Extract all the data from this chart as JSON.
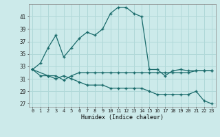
{
  "xlabel": "Humidex (Indice chaleur)",
  "background_color": "#cceaea",
  "grid_color": "#b0d8d8",
  "line_color": "#1a6b6b",
  "xlim": [
    -0.5,
    23.5
  ],
  "ylim": [
    26.5,
    43.0
  ],
  "yticks": [
    27,
    29,
    31,
    33,
    35,
    37,
    39,
    41
  ],
  "xticks": [
    0,
    1,
    2,
    3,
    4,
    5,
    6,
    7,
    8,
    9,
    10,
    11,
    12,
    13,
    14,
    15,
    16,
    17,
    18,
    19,
    20,
    21,
    22,
    23
  ],
  "series1_x": [
    0,
    1,
    2,
    3,
    4,
    5,
    6,
    7,
    8,
    9,
    10,
    11,
    12,
    13,
    14,
    15,
    16,
    17,
    18,
    19,
    20,
    21,
    22,
    23
  ],
  "series1_y": [
    32.5,
    31.5,
    31.5,
    31.5,
    30.8,
    31.5,
    32.0,
    32.0,
    32.0,
    32.0,
    32.0,
    32.0,
    32.0,
    32.0,
    32.0,
    32.0,
    32.0,
    32.0,
    32.0,
    32.0,
    32.0,
    32.3,
    32.3,
    32.3
  ],
  "series2_x": [
    0,
    1,
    2,
    3,
    4,
    5,
    6,
    7,
    8,
    9,
    10,
    11,
    12,
    13,
    14,
    15,
    16,
    17,
    18,
    19,
    20,
    21,
    22,
    23
  ],
  "series2_y": [
    32.5,
    33.5,
    36.0,
    38.0,
    34.5,
    36.0,
    37.5,
    38.5,
    38.0,
    39.0,
    41.5,
    42.5,
    42.5,
    41.5,
    41.0,
    32.5,
    32.5,
    31.5,
    32.3,
    32.5,
    32.3,
    32.3,
    32.3,
    32.3
  ],
  "series3_x": [
    0,
    2,
    3,
    4,
    5,
    6,
    7,
    8,
    9,
    10,
    11,
    12,
    13,
    14,
    15,
    16,
    17,
    18,
    19,
    20,
    21,
    22,
    23
  ],
  "series3_y": [
    32.5,
    31.5,
    31.0,
    31.5,
    31.0,
    30.5,
    30.0,
    30.0,
    30.0,
    29.5,
    29.5,
    29.5,
    29.5,
    29.5,
    29.0,
    28.5,
    28.5,
    28.5,
    28.5,
    28.5,
    29.0,
    27.5,
    27.0
  ]
}
